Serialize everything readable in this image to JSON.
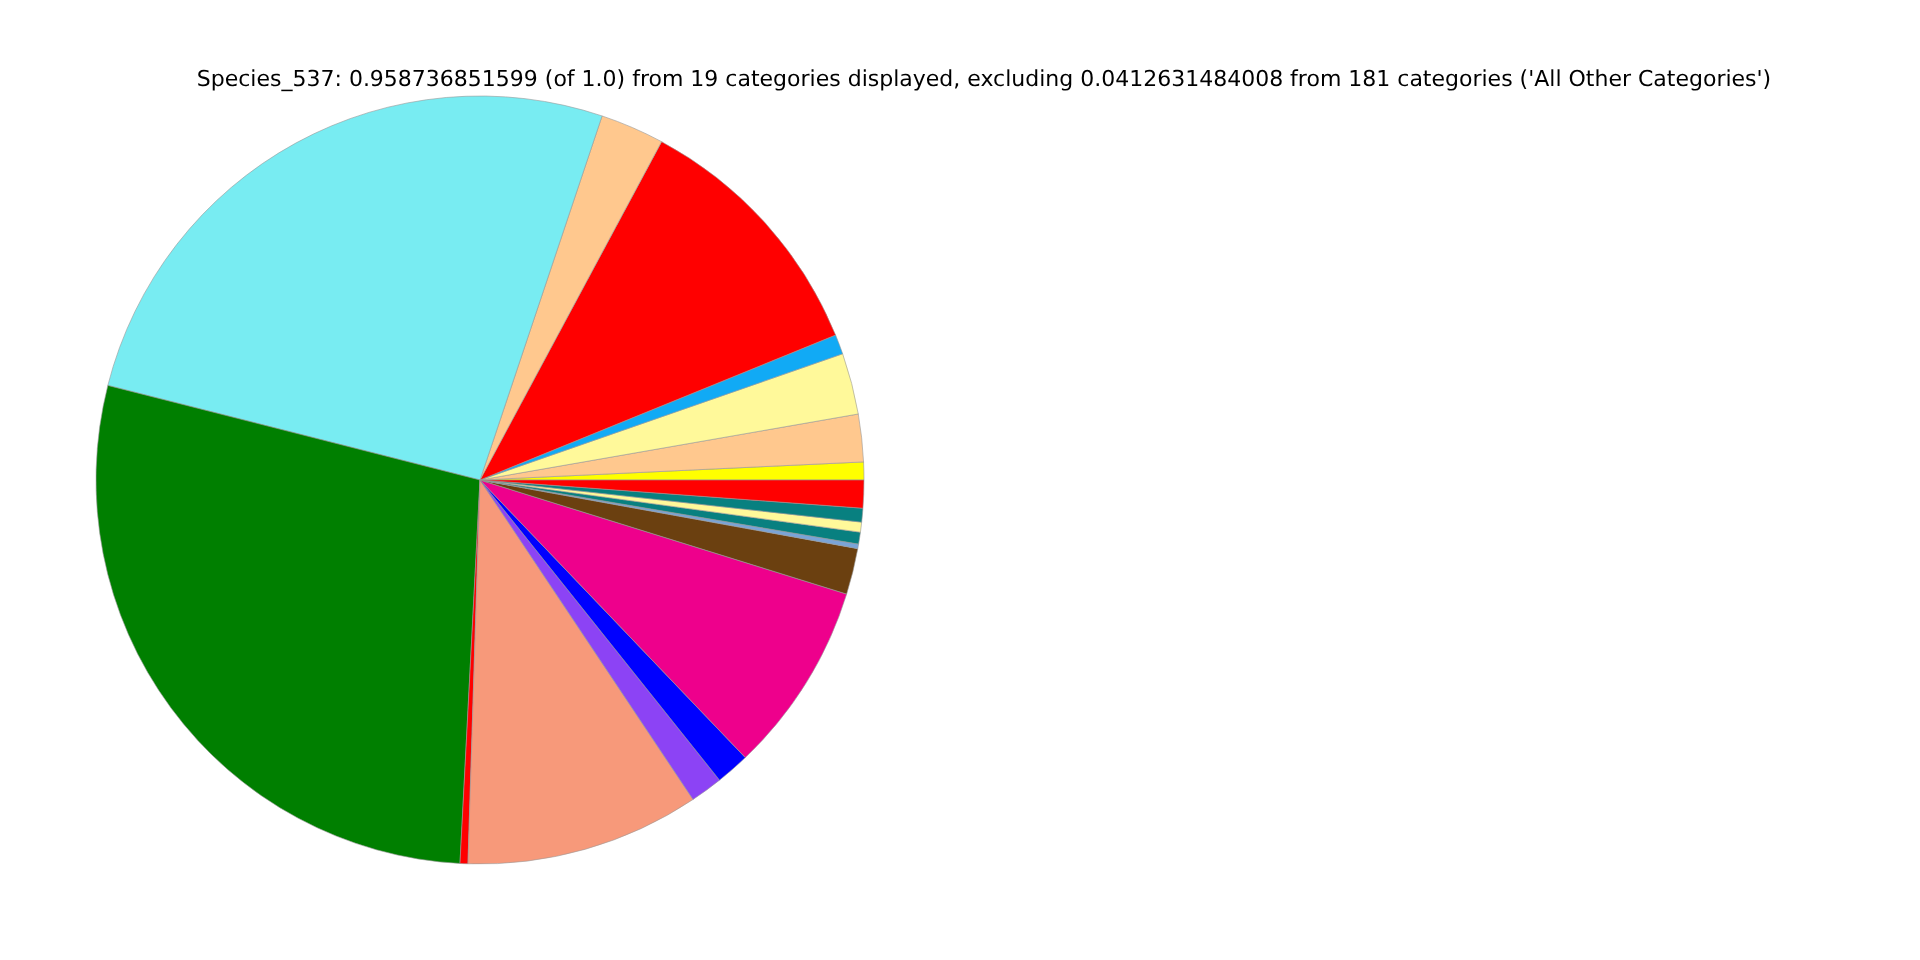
{
  "chart_data": {
    "type": "pie",
    "title": "Species_537: 0.958736851599 (of 1.0) from 19 categories displayed, excluding 0.0412631484008 from 181 categories ('All Other Categories')",
    "categories": [
      null,
      null,
      null,
      null,
      null,
      null,
      null,
      null,
      null,
      null,
      null,
      null,
      null,
      null,
      null,
      null,
      null,
      null,
      null
    ],
    "values": [
      0.75,
      2.0,
      2.58,
      0.83,
      11.0,
      2.69,
      26.19,
      28.13,
      0.33,
      9.86,
      1.36,
      1.42,
      8.06,
      1.94,
      0.19,
      0.5,
      0.42,
      0.58,
      1.17
    ],
    "colors": [
      "#ffff00",
      "#ffc88e",
      "#fff99a",
      "#11aaf5",
      "#ff0000",
      "#ffc88e",
      "#78ecf2",
      "#007f00",
      "#ff0000",
      "#f7997a",
      "#8c43f5",
      "#0000ff",
      "#ee008c",
      "#6b4010",
      "#7aa4d8",
      "#088080",
      "#fff99a",
      "#088080",
      "#ff0000"
    ]
  }
}
